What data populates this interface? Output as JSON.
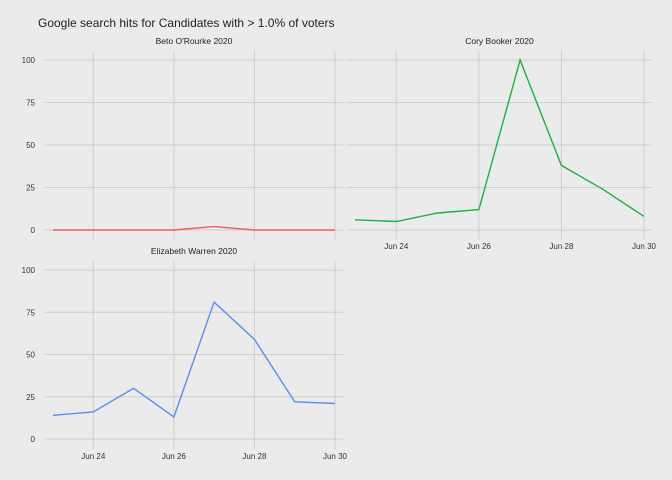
{
  "chart_data": {
    "type": "line",
    "title": "Google search hits for Candidates with > 1.0% of voters",
    "x_tick_labels": [
      "Jun 24",
      "Jun 26",
      "Jun 28",
      "Jun 30"
    ],
    "x_tick_dates": [
      "Jun 24",
      "Jun 26",
      "Jun 28",
      "Jun 30"
    ],
    "x": [
      "Jun 23",
      "Jun 24",
      "Jun 25",
      "Jun 26",
      "Jun 27",
      "Jun 28",
      "Jun 29",
      "Jun 30"
    ],
    "y_ticks": [
      0,
      25,
      50,
      75,
      100
    ],
    "ylim": [
      0,
      100
    ],
    "grid": true,
    "panels": [
      {
        "name": "Beto O'Rourke 2020",
        "color": "#e8625a",
        "values": [
          0,
          0,
          0,
          0,
          2,
          0,
          0,
          0
        ]
      },
      {
        "name": "Cory Booker 2020",
        "color": "#20b040",
        "values": [
          6,
          5,
          10,
          12,
          100,
          38,
          24,
          8
        ]
      },
      {
        "name": "Elizabeth Warren 2020",
        "color": "#5a8ef0",
        "values": [
          14,
          16,
          30,
          13,
          81,
          59,
          22,
          21
        ]
      }
    ]
  }
}
